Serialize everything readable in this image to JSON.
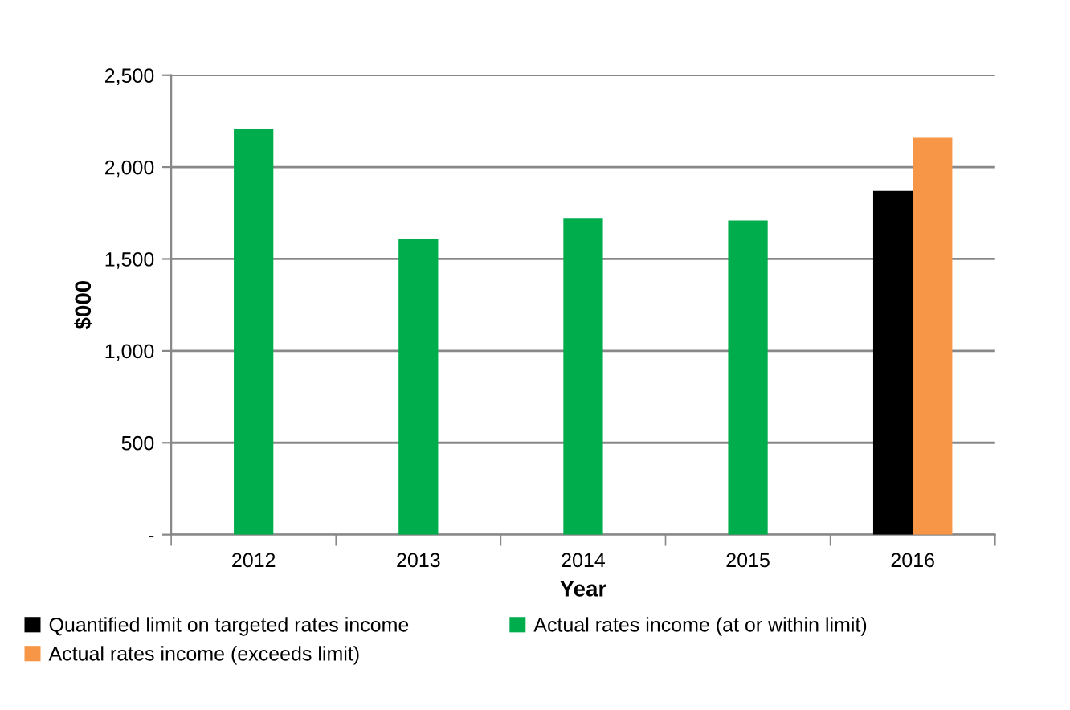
{
  "chart_data": {
    "type": "bar",
    "xlabel": "Year",
    "ylabel": "$000",
    "categories": [
      "2012",
      "2013",
      "2014",
      "2015",
      "2016"
    ],
    "series": [
      {
        "name": "Quantified limit on targeted rates income",
        "color": "#000000",
        "values": [
          null,
          null,
          null,
          null,
          1870
        ]
      },
      {
        "name": "Actual rates income (at or within limit)",
        "color": "#00ad4c",
        "values": [
          2210,
          1610,
          1720,
          1710,
          null
        ]
      },
      {
        "name": "Actual rates income (exceeds limit)",
        "color": "#f79646",
        "values": [
          null,
          null,
          null,
          null,
          2160
        ]
      }
    ],
    "ylim": [
      0,
      2500
    ],
    "yticks": [
      {
        "value": 0,
        "label": "-"
      },
      500,
      {
        "value": 1000,
        "label": "1,000"
      },
      {
        "value": 1500,
        "label": "1,500"
      },
      {
        "value": 2000,
        "label": "2,000"
      },
      {
        "value": 2500,
        "label": "2,500"
      }
    ],
    "grid": "y",
    "legend": "bottom"
  }
}
